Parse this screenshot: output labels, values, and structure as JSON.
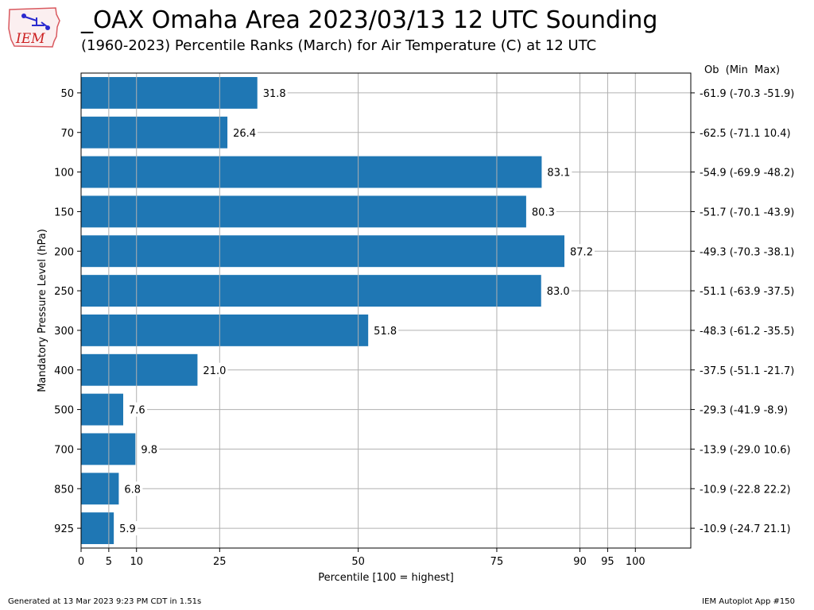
{
  "header": {
    "title": "_OAX Omaha Area  2023/03/13 12 UTC Sounding",
    "subtitle": "(1960-2023) Percentile Ranks (March) for Air Temperature (C) at 12 UTC",
    "logo_text": "IEM"
  },
  "footer": {
    "generated": "Generated at 13 Mar 2023 9:23 PM CDT in 1.51s",
    "app": "IEM Autoplot App #150"
  },
  "chart_data": {
    "type": "bar",
    "orientation": "horizontal",
    "title": "_OAX Omaha Area  2023/03/13 12 UTC Sounding",
    "subtitle": "(1960-2023) Percentile Ranks (March) for Air Temperature (C) at 12 UTC",
    "xlabel": "Percentile [100 = highest]",
    "ylabel": "Mandatory Pressure Level (hPa)",
    "right_header": "Ob  (Min  Max)",
    "xlim": [
      0,
      110
    ],
    "xticks": [
      0,
      5,
      10,
      25,
      50,
      75,
      90,
      95,
      100
    ],
    "grid": true,
    "bar_color": "#1f77b4",
    "categories": [
      "50",
      "70",
      "100",
      "150",
      "200",
      "250",
      "300",
      "400",
      "500",
      "700",
      "850",
      "925"
    ],
    "values": [
      31.8,
      26.4,
      83.1,
      80.3,
      87.2,
      83.0,
      51.8,
      21.0,
      7.6,
      9.8,
      6.8,
      5.9
    ],
    "value_labels": [
      "31.8",
      "26.4",
      "83.1",
      "80.3",
      "87.2",
      "83.0",
      "51.8",
      "21.0",
      "7.6",
      "9.8",
      "6.8",
      "5.9"
    ],
    "right_labels": [
      "-61.9 (-70.3 -51.9)",
      "-62.5 (-71.1 10.4)",
      "-54.9 (-69.9 -48.2)",
      "-51.7 (-70.1 -43.9)",
      "-49.3 (-70.3 -38.1)",
      "-51.1 (-63.9 -37.5)",
      "-48.3 (-61.2 -35.5)",
      "-37.5 (-51.1 -21.7)",
      "-29.3 (-41.9 -8.9)",
      "-13.9 (-29.0 10.6)",
      "-10.9 (-22.8 22.2)",
      "-10.9 (-24.7 21.1)"
    ]
  }
}
